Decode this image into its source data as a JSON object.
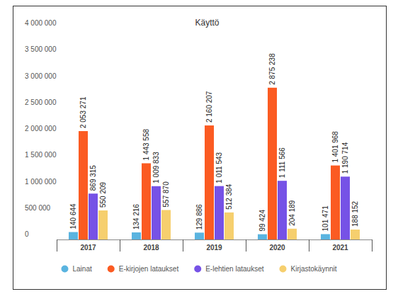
{
  "chart_data": {
    "type": "bar",
    "title": "Käyttö",
    "categories": [
      "2017",
      "2018",
      "2019",
      "2020",
      "2021"
    ],
    "series": [
      {
        "name": "Lainat",
        "color": "#5ab4e0",
        "values": [
          140644,
          134216,
          129886,
          99424,
          101471
        ],
        "value_labels": [
          "140 644",
          "134 216",
          "129 886",
          "99 424",
          "101 471"
        ]
      },
      {
        "name": "E-kirjojen lataukset",
        "color": "#fb5b22",
        "values": [
          2053271,
          1443558,
          2160207,
          2875238,
          1401968
        ],
        "value_labels": [
          "2 053 271",
          "1 443 558",
          "2 160 207",
          "2 875 238",
          "1 401 968"
        ]
      },
      {
        "name": "E-lehtien lataukset",
        "color": "#7652e6",
        "values": [
          869315,
          1009833,
          1011543,
          1111566,
          1190714
        ],
        "value_labels": [
          "869 315",
          "1 009 833",
          "1 011 543",
          "1 111 566",
          "1 190 714"
        ]
      },
      {
        "name": "Kirjastokäynnit",
        "color": "#f6cf6e",
        "values": [
          550209,
          557870,
          512384,
          204189,
          188152
        ],
        "value_labels": [
          "550 209",
          "557 870",
          "512 384",
          "204 189",
          "188 152"
        ]
      }
    ],
    "ylim": [
      0,
      4000000
    ],
    "yticks": [
      0,
      {
        "value": 500000,
        "label": "500 000"
      },
      {
        "value": 1000000,
        "label": "1 000 000"
      },
      {
        "value": 1500000,
        "label": "1 500 000"
      },
      {
        "value": 2000000,
        "label": "2 000 000"
      },
      {
        "value": 2500000,
        "label": "2 500 000"
      },
      {
        "value": 3000000,
        "label": "3 000 000"
      },
      {
        "value": 3500000,
        "label": "3 500 000"
      },
      {
        "value": 4000000,
        "label": "4 000 000"
      }
    ],
    "grid": false,
    "data_labels": true,
    "legend": "bottom"
  }
}
